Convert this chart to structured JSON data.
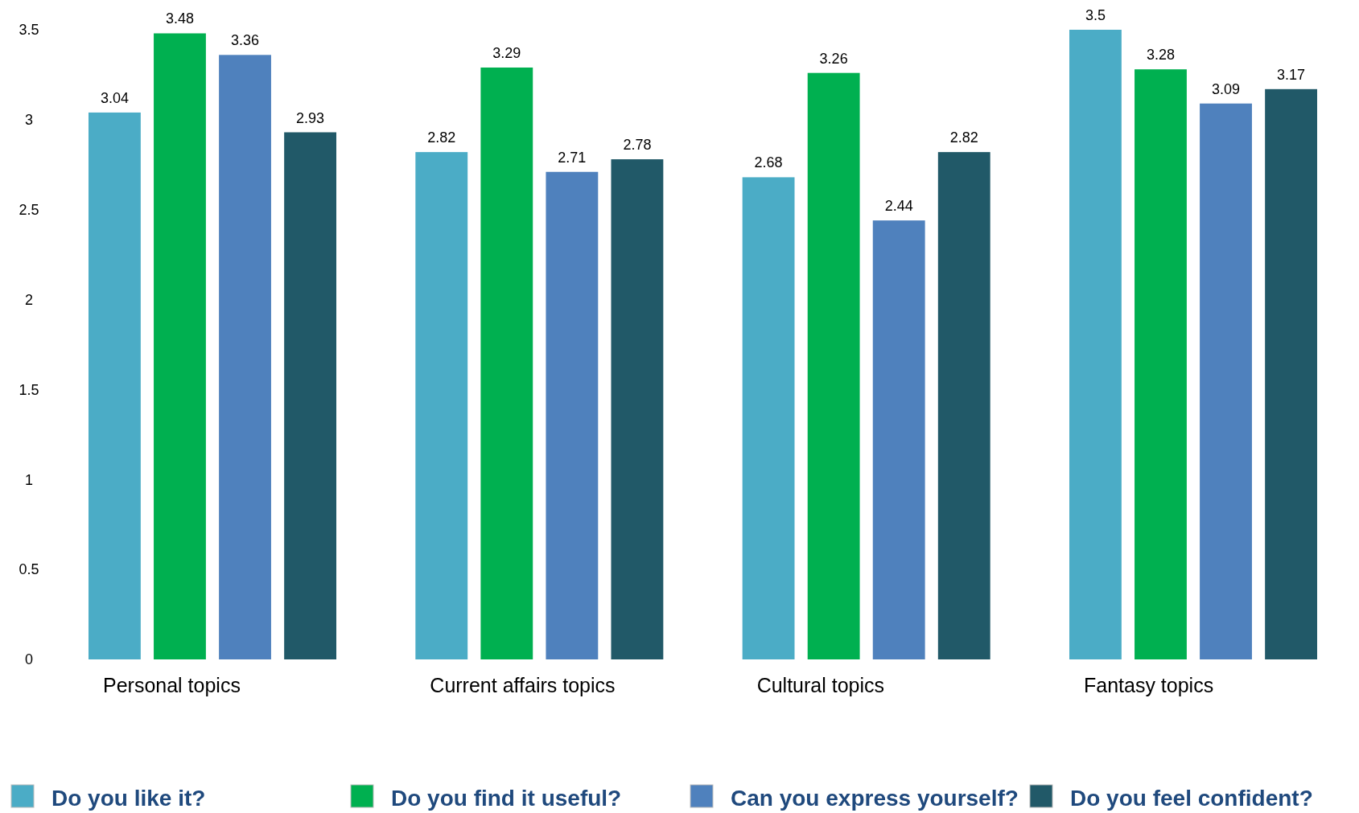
{
  "chart_data": {
    "type": "bar",
    "categories": [
      "Personal topics",
      "Current affairs topics",
      "Cultural topics",
      "Fantasy topics"
    ],
    "series": [
      {
        "name": "Do you like it?",
        "color": "#4bacc6",
        "values": [
          3.04,
          2.82,
          2.68,
          3.5
        ]
      },
      {
        "name": "Do you find it useful?",
        "color": "#00b050",
        "values": [
          3.48,
          3.29,
          3.26,
          3.28
        ]
      },
      {
        "name": "Can you express yourself?",
        "color": "#4f81bd",
        "values": [
          3.36,
          2.71,
          2.44,
          3.09
        ]
      },
      {
        "name": "Do you feel confident?",
        "color": "#215968",
        "values": [
          2.93,
          2.78,
          2.82,
          3.17
        ]
      }
    ],
    "ylim": [
      0,
      3.5
    ],
    "yticks": [
      0,
      0.5,
      1,
      1.5,
      2,
      2.5,
      3,
      3.5
    ],
    "data_labels": true,
    "legend": "bottom"
  }
}
